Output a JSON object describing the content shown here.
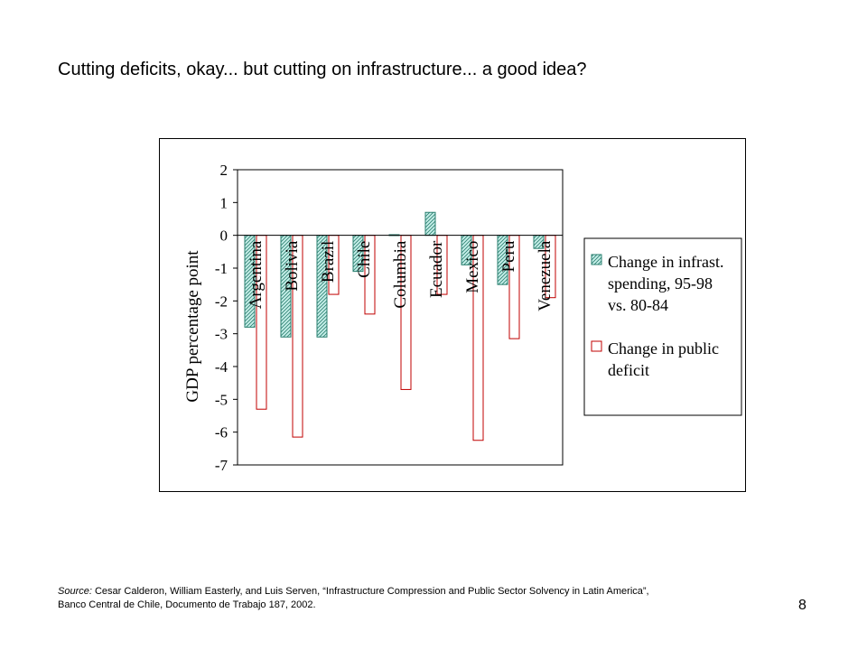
{
  "slide": {
    "title": "Cutting deficits, okay... but cutting on infrastructure... a good idea?",
    "page_number": "8"
  },
  "source": {
    "label": "Source:",
    "line1": "Cesar Calderon, William Easterly, and Luis Serven, “Infrastructure Compression and Public Sector Solvency in Latin America”,",
    "line2": "Banco Central de Chile, Documento de Trabajo 187, 2002."
  },
  "colors": {
    "infrastructure_fill": "#c6efe9",
    "infrastructure_stroke": "#2a7f6f",
    "deficit_fill": "#ffffff",
    "deficit_stroke": "#c00000",
    "axis": "#000000",
    "frame": "#000000"
  },
  "chart_data": {
    "type": "bar",
    "title": "",
    "xlabel": "",
    "ylabel": "GDP percentage point",
    "ylim": [
      -7,
      2
    ],
    "yticks": [
      2,
      1,
      0,
      -1,
      -2,
      -3,
      -4,
      -5,
      -6,
      -7
    ],
    "ytick_labels": [
      "2",
      "1",
      "0",
      "-1",
      "-2",
      "-3",
      "-4",
      "-5",
      "-6",
      "-7"
    ],
    "grid": false,
    "legend_position": "right",
    "categories": [
      "Argentina",
      "Bolivia",
      "Brazil",
      "Chile",
      "Columbia",
      "Ecuador",
      "Mexico",
      "Peru",
      "Venezuela"
    ],
    "series": [
      {
        "name": "Change in infrast. spending, 95-98 vs. 80-84",
        "legend_lines": [
          "Change in infrast.",
          "spending, 95-98",
          "vs. 80-84"
        ],
        "pattern": "hatched",
        "values": [
          -2.8,
          -3.1,
          -3.1,
          -1.1,
          0.02,
          0.7,
          -0.9,
          -1.5,
          -0.4
        ]
      },
      {
        "name": "Change in public deficit",
        "legend_lines": [
          "Change in public",
          "deficit"
        ],
        "pattern": "solid",
        "values": [
          -5.3,
          -6.15,
          -1.8,
          -2.4,
          -4.7,
          -1.8,
          -6.25,
          -3.15,
          -1.9
        ]
      }
    ]
  }
}
